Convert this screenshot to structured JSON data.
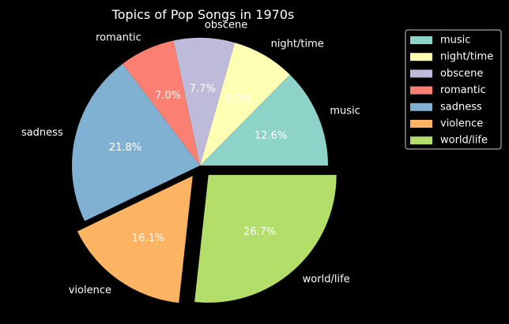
{
  "chart_data": {
    "type": "pie",
    "title": "Topics of Pop Songs in 1970s",
    "categories": [
      "music",
      "night/time",
      "obscene",
      "romantic",
      "sadness",
      "violence",
      "world/life"
    ],
    "values": [
      12.6,
      8.0,
      7.7,
      7.0,
      21.8,
      16.1,
      26.7
    ],
    "value_labels": [
      "12.6%",
      "8.0%",
      "7.7%",
      "7.0%",
      "21.8%",
      "16.1%",
      "26.7%"
    ],
    "colors": [
      "#8dd3c7",
      "#ffffb3",
      "#bebada",
      "#fb8072",
      "#80b1d3",
      "#fdb462",
      "#b3de69"
    ],
    "exploded": [
      "violence",
      "world/life"
    ],
    "start_angle_deg": 0,
    "direction": "counterclockwise",
    "legend_position": "top-right",
    "legend": [
      "music",
      "night/time",
      "obscene",
      "romantic",
      "sadness",
      "violence",
      "world/life"
    ]
  }
}
